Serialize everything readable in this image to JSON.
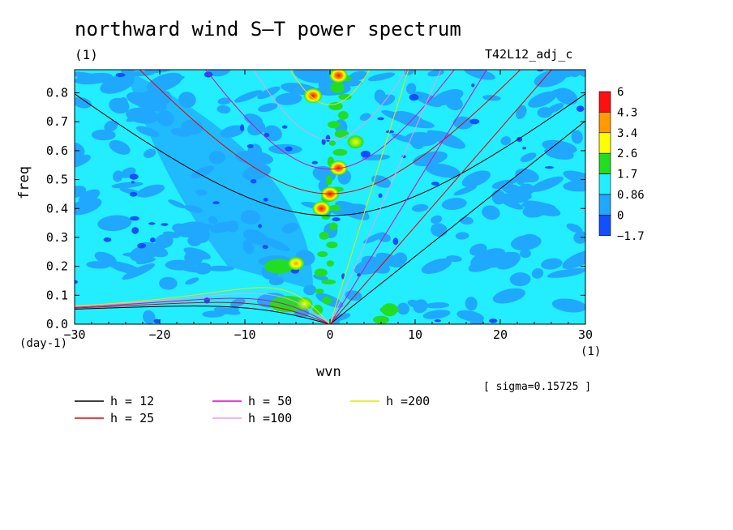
{
  "chart_data": {
    "type": "heatmap",
    "title": "northward wind S–T power spectrum",
    "subtitle_left": "(1)",
    "subtitle_right": "T42L12_adj_c",
    "xlabel": "wvn",
    "ylabel": "freq",
    "x_units": "(1)",
    "y_units": "(day-1)",
    "xlim": [
      -30,
      30
    ],
    "ylim": [
      0,
      0.88
    ],
    "x_ticks": [
      -30,
      -20,
      -10,
      0,
      10,
      20,
      30
    ],
    "y_ticks": [
      0.0,
      0.1,
      0.2,
      0.3,
      0.4,
      0.5,
      0.6,
      0.7,
      0.8
    ],
    "x_tick_labels": [
      "−30",
      "−20",
      "−10",
      "0",
      "10",
      "20",
      "30"
    ],
    "y_tick_labels": [
      "0.0",
      "0.1",
      "0.2",
      "0.3",
      "0.4",
      "0.5",
      "0.6",
      "0.7",
      "0.8"
    ],
    "annotation": "[ sigma=0.15725 ]",
    "colorbar": {
      "labels": [
        "6",
        "4.3",
        "3.4",
        "2.6",
        "1.7",
        "0.86",
        "0",
        "−1.7"
      ],
      "colors": [
        "#ff1010",
        "#ff9a00",
        "#ffff00",
        "#22dd22",
        "#22eeff",
        "#20a8ff",
        "#1050ff"
      ]
    },
    "dispersion_curves": [
      {
        "label": "h = 12",
        "color": "#000000"
      },
      {
        "label": "h = 25",
        "color": "#e60000"
      },
      {
        "label": "h = 50",
        "color": "#e000c8"
      },
      {
        "label": "h =100",
        "color": "#e6a0e6"
      },
      {
        "label": "h =200",
        "color": "#e6e600"
      }
    ],
    "spectral_peaks": [
      {
        "wvn": 1,
        "freq": 0.86,
        "level": 6
      },
      {
        "wvn": -2,
        "freq": 0.79,
        "level": 6
      },
      {
        "wvn": 1,
        "freq": 0.54,
        "level": 6
      },
      {
        "wvn": 0,
        "freq": 0.45,
        "level": 6
      },
      {
        "wvn": -1,
        "freq": 0.4,
        "level": 6
      },
      {
        "wvn": -4,
        "freq": 0.21,
        "level": 4.3
      },
      {
        "wvn": 3,
        "freq": 0.63,
        "level": 3.4
      },
      {
        "wvn": -3,
        "freq": 0.07,
        "level": 3.4
      },
      {
        "wvn": 7,
        "freq": 0.05,
        "level": 1.7
      }
    ]
  }
}
